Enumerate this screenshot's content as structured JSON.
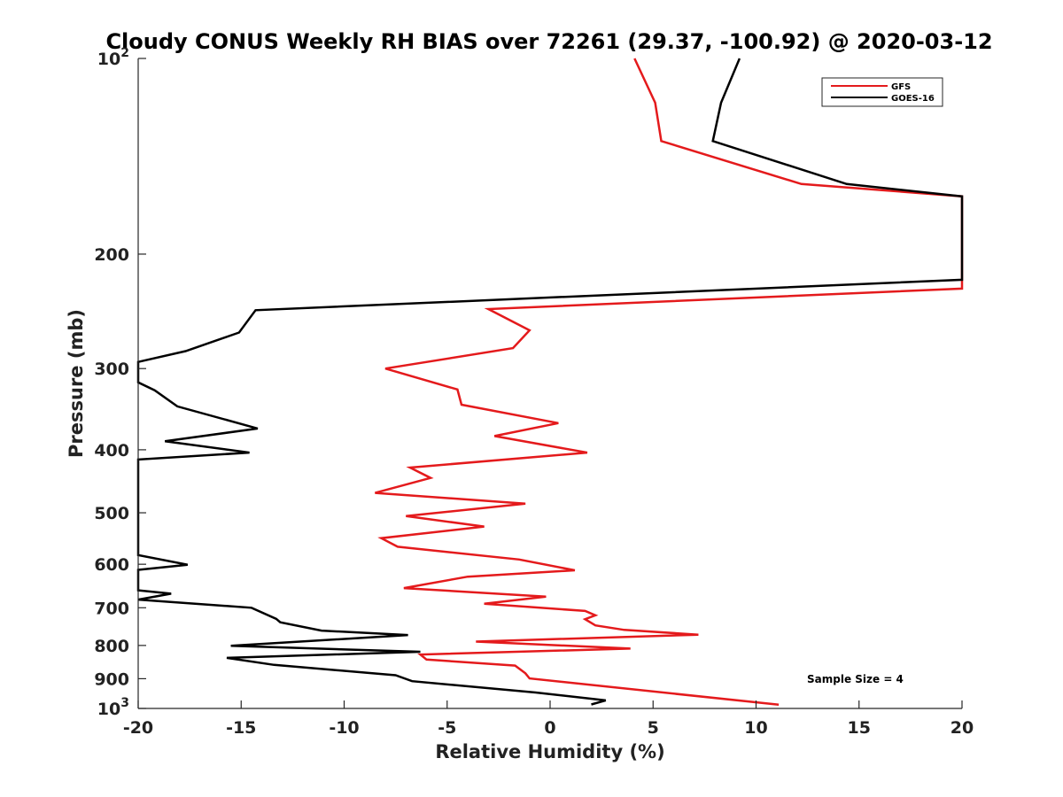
{
  "chart_data": {
    "type": "line",
    "title": "Cloudy CONUS Weekly RH BIAS over 72261 (29.37, -100.92) @ 2020-03-12",
    "xlabel": "Relative Humidity (%)",
    "ylabel": "Pressure (mb)",
    "xlim": [
      -20,
      20
    ],
    "ylim": [
      100,
      1000
    ],
    "yscale": "log",
    "yreversed": true,
    "grid": false,
    "legend_position": "top-right",
    "x_ticks": [
      "-20",
      "-15",
      "-10",
      "-5",
      "0",
      "5",
      "10",
      "15",
      "20"
    ],
    "y_ticks": [
      {
        "value": 100,
        "base": "10",
        "exp": "2"
      },
      {
        "value": 200,
        "label": "200"
      },
      {
        "value": 300,
        "label": "300"
      },
      {
        "value": 400,
        "label": "400"
      },
      {
        "value": 500,
        "label": "500"
      },
      {
        "value": 600,
        "label": "600"
      },
      {
        "value": 700,
        "label": "700"
      },
      {
        "value": 800,
        "label": "800"
      },
      {
        "value": 900,
        "label": "900"
      },
      {
        "value": 1000,
        "base": "10",
        "exp": "3"
      }
    ],
    "annotation": "Sample Size = 4",
    "series": [
      {
        "name": "GFS",
        "color": "#e41a1c",
        "points": [
          [
            4.1,
            100
          ],
          [
            5.1,
            117
          ],
          [
            5.4,
            134
          ],
          [
            12.2,
            156
          ],
          [
            20,
            163
          ],
          [
            20,
            226
          ],
          [
            -3,
            243
          ],
          [
            -1,
            262
          ],
          [
            -1.8,
            279
          ],
          [
            -8,
            300
          ],
          [
            -4.5,
            323
          ],
          [
            -4.3,
            341
          ],
          [
            0.4,
            364
          ],
          [
            -2.7,
            381
          ],
          [
            1.8,
            404
          ],
          [
            -6.8,
            426
          ],
          [
            -5.8,
            442
          ],
          [
            -8.5,
            466
          ],
          [
            -1.2,
            484
          ],
          [
            -7,
            506
          ],
          [
            -3.2,
            525
          ],
          [
            -8.2,
            547
          ],
          [
            -7.4,
            564
          ],
          [
            -1.5,
            590
          ],
          [
            1.2,
            613
          ],
          [
            -4,
            627
          ],
          [
            -7.1,
            653
          ],
          [
            -0.2,
            673
          ],
          [
            -3.2,
            690
          ],
          [
            1.7,
            708
          ],
          [
            2.2,
            719
          ],
          [
            1.7,
            729
          ],
          [
            2.2,
            745
          ],
          [
            3.6,
            757
          ],
          [
            7.2,
            770
          ],
          [
            -3.6,
            789
          ],
          [
            3.9,
            809
          ],
          [
            -6.3,
            826
          ],
          [
            -6,
            841
          ],
          [
            -1.7,
            859
          ],
          [
            -1.2,
            883
          ],
          [
            -1,
            899
          ],
          [
            11.1,
            987
          ]
        ]
      },
      {
        "name": "GOES-16",
        "color": "#000000",
        "points": [
          [
            9.2,
            100
          ],
          [
            8.3,
            117
          ],
          [
            7.9,
            134
          ],
          [
            14.4,
            156
          ],
          [
            20,
            163
          ],
          [
            20,
            219
          ],
          [
            -14.3,
            244
          ],
          [
            -15.1,
            264
          ],
          [
            -17.7,
            282
          ],
          [
            -20,
            293
          ],
          [
            -20,
            315
          ],
          [
            -19.2,
            324
          ],
          [
            -18.1,
            343
          ],
          [
            -14.2,
            371
          ],
          [
            -18.7,
            388
          ],
          [
            -14.6,
            404
          ],
          [
            -20,
            414
          ],
          [
            -20,
            581
          ],
          [
            -17.6,
            601
          ],
          [
            -20,
            612
          ],
          [
            -20,
            658
          ],
          [
            -18.4,
            666
          ],
          [
            -20,
            680
          ],
          [
            -14.5,
            700
          ],
          [
            -13.3,
            728
          ],
          [
            -13.1,
            737
          ],
          [
            -11.1,
            759
          ],
          [
            -6.9,
            771
          ],
          [
            -15.5,
            801
          ],
          [
            -6.3,
            818
          ],
          [
            -15.7,
            836
          ],
          [
            -13.4,
            857
          ],
          [
            -7.5,
            889
          ],
          [
            -6.7,
            908
          ],
          [
            -0.7,
            945
          ],
          [
            2.7,
            972
          ],
          [
            2,
            986
          ]
        ]
      }
    ]
  }
}
